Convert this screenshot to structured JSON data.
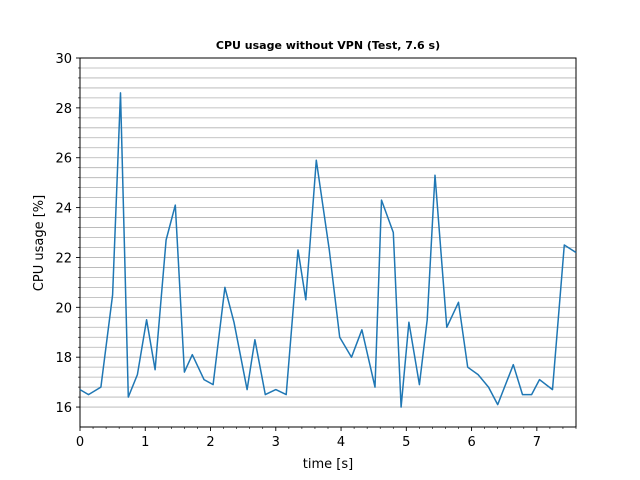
{
  "chart_data": {
    "type": "line",
    "title": "CPU usage without VPN (Test, 7.6 s)",
    "xlabel": "time [s]",
    "ylabel": "CPU usage [%]",
    "xlim": [
      0,
      7.6
    ],
    "ylim": [
      15.2,
      30
    ],
    "xticks": [
      0,
      1,
      2,
      3,
      4,
      5,
      6,
      7
    ],
    "yticks": [
      16,
      18,
      20,
      22,
      24,
      26,
      28,
      30
    ],
    "grid": "horizontal-minor",
    "line_color": "#1f77b4",
    "series": [
      {
        "x": [
          0.0,
          0.13,
          0.32,
          0.5,
          0.62,
          0.74,
          0.88,
          1.02,
          1.15,
          1.32,
          1.46,
          1.6,
          1.72,
          1.9,
          2.04,
          2.22,
          2.36,
          2.56,
          2.68,
          2.84,
          3.0,
          3.16,
          3.34,
          3.46,
          3.62,
          3.82,
          3.98,
          4.16,
          4.32,
          4.52,
          4.62,
          4.8,
          4.92,
          5.04,
          5.2,
          5.32,
          5.44,
          5.62,
          5.8,
          5.94,
          6.1,
          6.26,
          6.4,
          6.64,
          6.78,
          6.92,
          7.04,
          7.24,
          7.42,
          7.6
        ],
        "y": [
          16.7,
          16.5,
          16.8,
          20.5,
          28.6,
          16.4,
          17.3,
          19.5,
          17.5,
          22.7,
          24.1,
          17.4,
          18.1,
          17.1,
          16.9,
          20.8,
          19.4,
          16.7,
          18.7,
          16.5,
          16.7,
          16.5,
          22.3,
          20.3,
          25.9,
          22.3,
          18.8,
          18.0,
          19.1,
          16.8,
          24.3,
          23.0,
          16.0,
          19.4,
          16.9,
          19.5,
          25.3,
          19.2,
          20.2,
          17.6,
          17.3,
          16.8,
          16.1,
          17.7,
          16.5,
          16.5,
          17.1,
          16.7,
          22.5,
          22.2
        ]
      }
    ]
  }
}
